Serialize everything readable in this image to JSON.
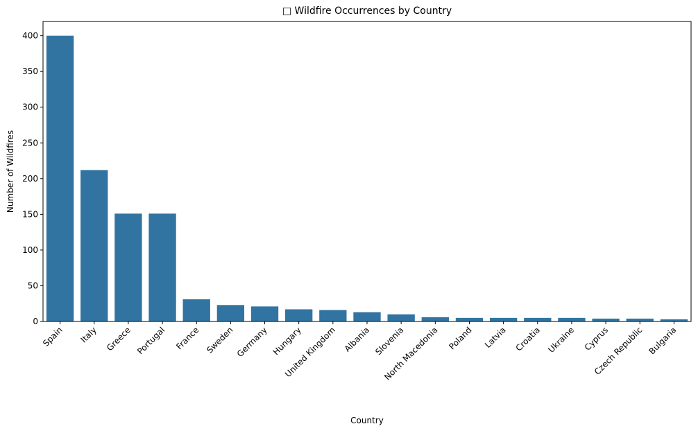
{
  "chart_data": {
    "type": "bar",
    "title": "□ Wildfire Occurrences by Country",
    "xlabel": "Country",
    "ylabel": "Number of Wildfires",
    "ylim": [
      0,
      420
    ],
    "yticks": [
      0,
      50,
      100,
      150,
      200,
      250,
      300,
      350,
      400
    ],
    "grid": false,
    "bar_color": "#3274a1",
    "categories": [
      "Spain",
      "Italy",
      "Greece",
      "Portugal",
      "France",
      "Sweden",
      "Germany",
      "Hungary",
      "United Kingdom",
      "Albania",
      "Slovenia",
      "North Macedonia",
      "Poland",
      "Latvia",
      "Croatia",
      "Ukraine",
      "Cyprus",
      "Czech Republic",
      "Bulgaria"
    ],
    "values": [
      400,
      212,
      151,
      151,
      31,
      23,
      21,
      17,
      16,
      13,
      10,
      6,
      5,
      5,
      5,
      5,
      4,
      4,
      3
    ]
  }
}
